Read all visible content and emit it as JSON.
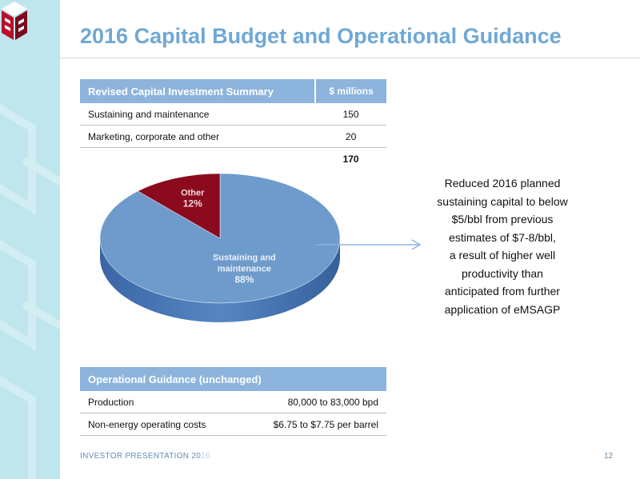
{
  "slide": {
    "title": "2016 Capital Budget and Operational Guidance",
    "page_number": "12"
  },
  "footer": {
    "label": "INVESTOR PRESENTATION 20",
    "label_tail": "16"
  },
  "capital_table": {
    "header": "Revised Capital Investment Summary",
    "value_header": "$ millions",
    "rows": [
      {
        "label": "Sustaining and maintenance",
        "value": "150"
      },
      {
        "label": "Marketing, corporate and other",
        "value": "20"
      }
    ],
    "total": "170"
  },
  "callout": {
    "lines": [
      "Reduced 2016 planned",
      "sustaining capital to below",
      "$5/bbl from previous",
      "estimates of $7-8/bbl,",
      "a result of higher well",
      "productivity than",
      "anticipated from further",
      "application of eMSAGP"
    ]
  },
  "guidance_table": {
    "header": "Operational Guidance (unchanged)",
    "rows": [
      {
        "label": "Production",
        "value": "80,000 to 83,000 bpd"
      },
      {
        "label": "Non-energy operating costs",
        "value": "$6.75 to $7.75 per barrel"
      }
    ]
  },
  "colors": {
    "accent": "#6fa8d6",
    "table_header": "#8db4dc",
    "sustaining": "#6e9bcb",
    "other": "#8b0a1e"
  },
  "chart_data": {
    "type": "pie",
    "slices": [
      {
        "name": "Sustaining and maintenance",
        "label_lines": [
          "Sustaining and",
          "maintenance"
        ],
        "value": 88,
        "pct_label": "88%"
      },
      {
        "name": "Other",
        "label_lines": [
          "Other"
        ],
        "value": 12,
        "pct_label": "12%"
      }
    ]
  }
}
